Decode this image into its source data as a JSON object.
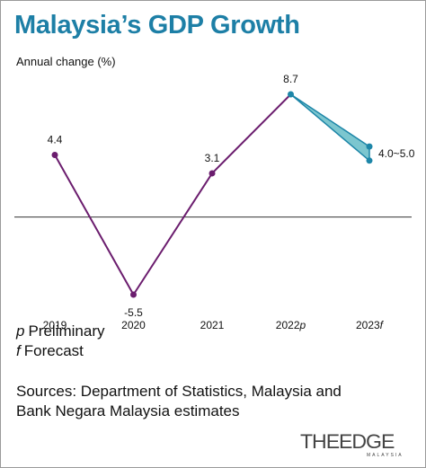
{
  "chart_data": {
    "type": "line",
    "title": "Malaysia’s GDP Growth",
    "ylabel": "Annual change (%)",
    "xlabel": "",
    "categories": [
      "2019",
      "2020",
      "2021",
      "2022",
      "2023"
    ],
    "category_labels": [
      {
        "year": "2019",
        "suffix": ""
      },
      {
        "year": "2020",
        "suffix": ""
      },
      {
        "year": "2021",
        "suffix": ""
      },
      {
        "year": "2022",
        "suffix": "p"
      },
      {
        "year": "2023",
        "suffix": "f"
      }
    ],
    "series": [
      {
        "values": [
          4.4,
          -5.5,
          3.1,
          8.7,
          null
        ],
        "color": "#6b1d6e"
      }
    ],
    "forecast_range": {
      "category": "2023",
      "low": 4.0,
      "high": 5.0,
      "color": "#1d86a8",
      "fill": "#7cc6cf"
    },
    "data_labels": [
      "4.4",
      "-5.5",
      "3.1",
      "8.7",
      "4.0~5.0"
    ],
    "ylim": [
      -5.5,
      8.7
    ],
    "grid": false,
    "legend": "none"
  },
  "notes": [
    {
      "symbol": "p",
      "text": "Preliminary"
    },
    {
      "symbol": "f",
      "text": "Forecast"
    }
  ],
  "source_lines": [
    "Sources: Department of Statistics, Malaysia and",
    "Bank Negara Malaysia estimates"
  ],
  "brand": {
    "name": "THEEDGE",
    "sub": "MALAYSIA"
  },
  "colors": {
    "title": "#1d7fa6",
    "line": "#6b1d6e",
    "forecast": "#1d86a8",
    "forecast_fill": "#7cc6cf",
    "axis": "#333333"
  }
}
